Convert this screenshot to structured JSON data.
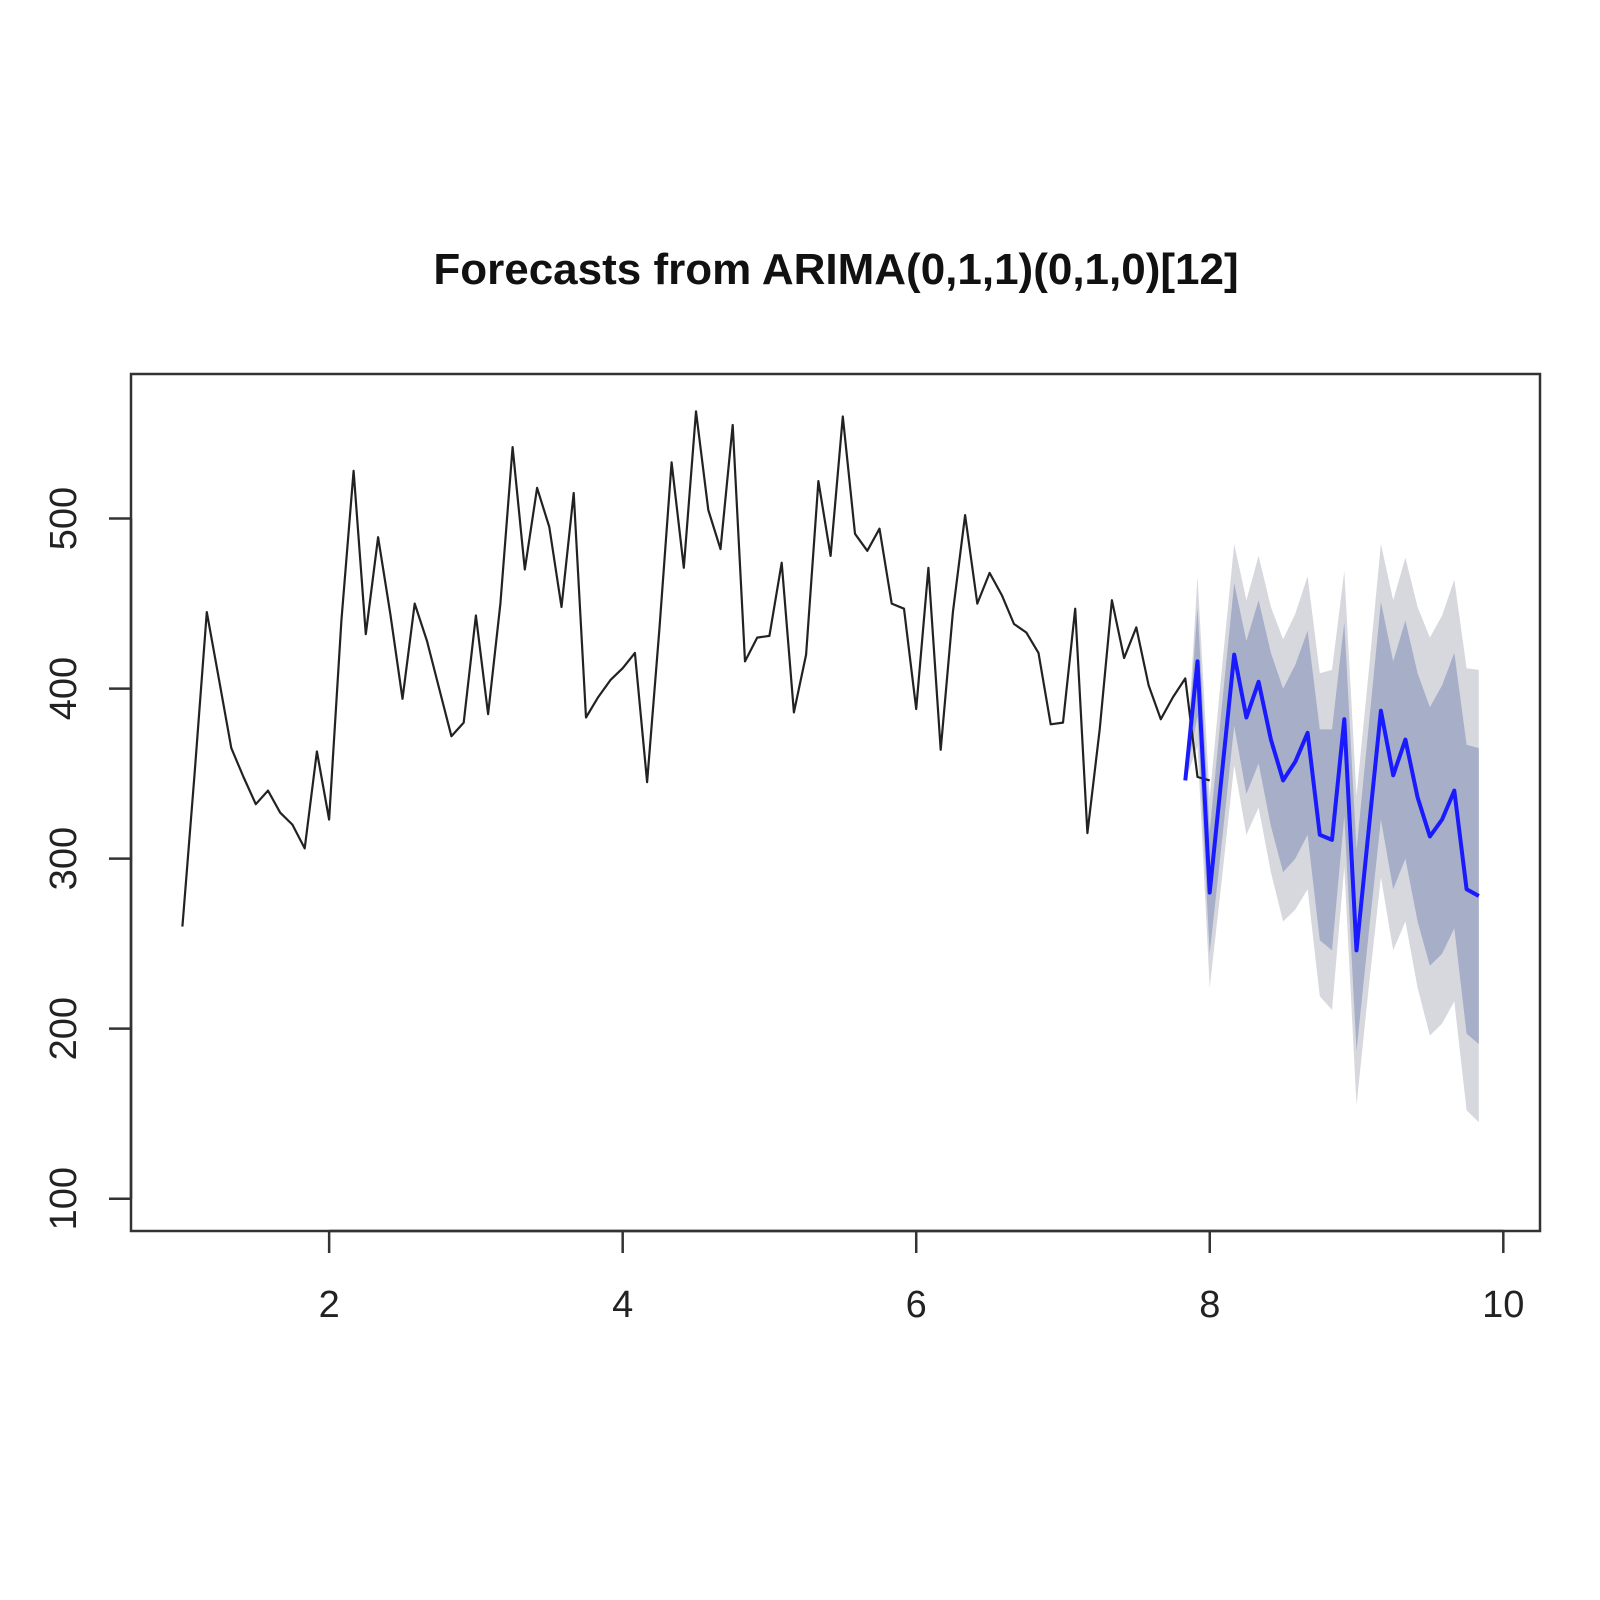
{
  "chart_data": {
    "type": "line",
    "title": "Forecasts from ARIMA(0,1,1)(0,1,0)[12]",
    "xlabel": "",
    "ylabel": "",
    "xlim": [
      0.65,
      10.25
    ],
    "ylim": [
      81,
      585
    ],
    "x_ticks": [
      2,
      4,
      6,
      8,
      10
    ],
    "x_tick_labels": [
      "2",
      "4",
      "6",
      "8",
      "10"
    ],
    "y_ticks": [
      100,
      200,
      300,
      400,
      500
    ],
    "y_tick_labels": [
      "100",
      "200",
      "300",
      "400",
      "500"
    ],
    "grid": false,
    "legend": "none",
    "colors": {
      "history": "#222222",
      "forecast": "#1a1aff",
      "band80": "#a7aec8",
      "band95": "#d6d8de"
    },
    "series": [
      {
        "role": "history",
        "x_start": 1.0,
        "x_step": 0.08333,
        "values": [
          260,
          350,
          445,
          405,
          365,
          348,
          332,
          340,
          327,
          320,
          306,
          363,
          323,
          440,
          528,
          432,
          489,
          444,
          394,
          450,
          428,
          400,
          372,
          380,
          443,
          385,
          450,
          542,
          470,
          518,
          495,
          448,
          515,
          383,
          395,
          405,
          412,
          421,
          345,
          435,
          533,
          471,
          563,
          505,
          482,
          555,
          416,
          430,
          431,
          474,
          386,
          420,
          522,
          478,
          560,
          491,
          481,
          494,
          450,
          447,
          388,
          471,
          364,
          445,
          502,
          450,
          468,
          455,
          438,
          433,
          421,
          379,
          380,
          447,
          315,
          376,
          452,
          418,
          436,
          402,
          382,
          395,
          406,
          348,
          346
        ]
      },
      {
        "role": "forecast",
        "x_start": 7.833,
        "x_step": 0.08333,
        "values": [
          346,
          416,
          280,
          350,
          420,
          383,
          404,
          370,
          346,
          357,
          374,
          314,
          311,
          382,
          246,
          317,
          387,
          349,
          370,
          336,
          313,
          323,
          340,
          282,
          278
        ],
        "lo80": [
          346,
          384,
          244,
          310,
          378,
          338,
          356,
          319,
          292,
          300,
          314,
          252,
          246,
          325,
          187,
          256,
          323,
          282,
          300,
          263,
          237,
          244,
          259,
          197,
          191
        ],
        "hi80": [
          346,
          448,
          316,
          390,
          462,
          428,
          452,
          421,
          400,
          414,
          434,
          376,
          376,
          439,
          305,
          378,
          451,
          416,
          440,
          409,
          389,
          402,
          421,
          367,
          365
        ],
        "lo95": [
          346,
          366,
          224,
          288,
          355,
          314,
          330,
          292,
          263,
          270,
          282,
          219,
          211,
          295,
          155,
          224,
          289,
          246,
          263,
          224,
          196,
          203,
          216,
          152,
          145
        ],
        "hi95": [
          346,
          466,
          336,
          412,
          485,
          452,
          478,
          448,
          429,
          444,
          466,
          409,
          411,
          469,
          337,
          410,
          485,
          452,
          477,
          448,
          430,
          443,
          464,
          412,
          411
        ]
      }
    ]
  }
}
